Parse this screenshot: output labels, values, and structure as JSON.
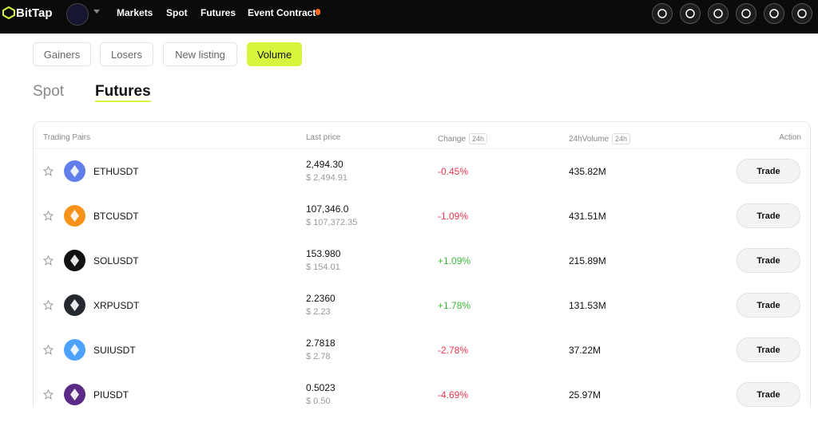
{
  "header": {
    "logo": "BitTap",
    "nav": [
      "Markets",
      "Spot",
      "Futures",
      "Event Contract"
    ]
  },
  "filters": {
    "buttons": [
      "Gainers",
      "Losers",
      "New listing",
      "Volume"
    ],
    "active": 3
  },
  "tabs": {
    "items": [
      "Spot",
      "Futures"
    ],
    "active": 1
  },
  "table": {
    "columns": [
      {
        "label": "Trading Pairs"
      },
      {
        "label": "Last price"
      },
      {
        "label": "Change",
        "badge": "24h"
      },
      {
        "label": "24hVolume",
        "badge": "24h"
      },
      {
        "label": "Action"
      }
    ],
    "rows": [
      {
        "pair": "ETHUSDT",
        "color": "#627eea",
        "price": "2,494.30",
        "usd": "$ 2,494.91",
        "change": "-0.45%",
        "volume": "435.82M",
        "action": "Trade"
      },
      {
        "pair": "BTCUSDT",
        "color": "#f7931a",
        "price": "107,346.0",
        "usd": "$ 107,372.35",
        "change": "-1.09%",
        "volume": "431.51M",
        "action": "Trade"
      },
      {
        "pair": "SOLUSDT",
        "color": "#111111",
        "price": "153.980",
        "usd": "$ 154.01",
        "change": "+1.09%",
        "volume": "215.89M",
        "action": "Trade"
      },
      {
        "pair": "XRPUSDT",
        "color": "#23292f",
        "price": "2.2360",
        "usd": "$ 2.23",
        "change": "+1.78%",
        "volume": "131.53M",
        "action": "Trade"
      },
      {
        "pair": "SUIUSDT",
        "color": "#4da2ff",
        "price": "2.7818",
        "usd": "$ 2.78",
        "change": "-2.78%",
        "volume": "37.22M",
        "action": "Trade"
      },
      {
        "pair": "PIUSDT",
        "color": "#5b2a86",
        "price": "0.5023",
        "usd": "$ 0.50",
        "change": "-4.69%",
        "volume": "25.97M",
        "action": "Trade"
      }
    ]
  }
}
